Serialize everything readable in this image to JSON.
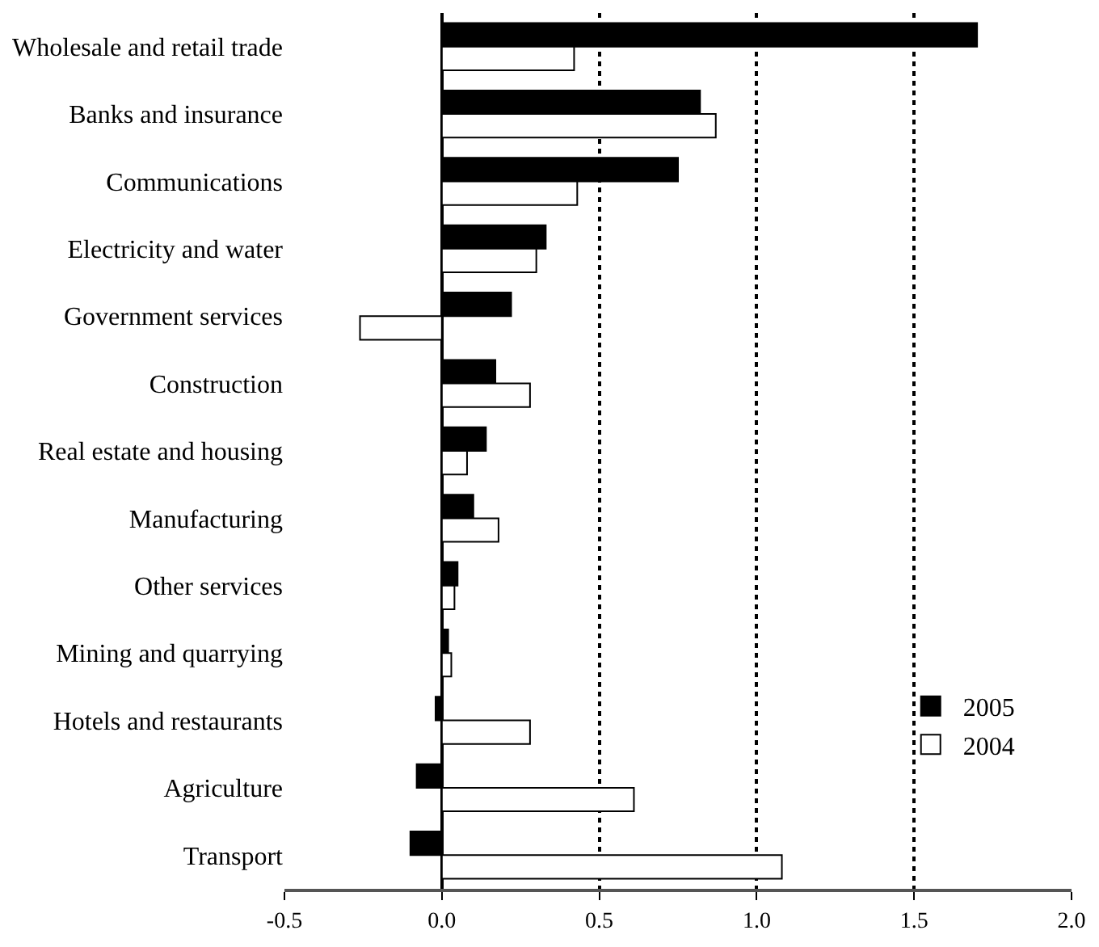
{
  "chart_data": {
    "type": "bar",
    "orientation": "horizontal",
    "categories": [
      "Wholesale and retail trade",
      "Banks and insurance",
      "Communications",
      "Electricity and water",
      "Government services",
      "Construction",
      "Real estate and housing",
      "Manufacturing",
      "Other services",
      "Mining and quarrying",
      "Hotels and restaurants",
      "Agriculture",
      "Transport"
    ],
    "series": [
      {
        "name": "2005",
        "color": "#000000",
        "values": [
          1.7,
          0.82,
          0.75,
          0.33,
          0.22,
          0.17,
          0.14,
          0.1,
          0.05,
          0.02,
          -0.02,
          -0.08,
          -0.1
        ]
      },
      {
        "name": "2004",
        "color": "#ffffff",
        "values": [
          0.42,
          0.87,
          0.43,
          0.3,
          -0.26,
          0.28,
          0.08,
          0.18,
          0.04,
          0.03,
          0.28,
          0.61,
          1.08
        ]
      }
    ],
    "xlim": [
      -0.5,
      2.0
    ],
    "xticks": [
      {
        "value": -0.5,
        "label": "-0.5"
      },
      {
        "value": 0.0,
        "label": "0.0"
      },
      {
        "value": 0.5,
        "label": "0.5"
      },
      {
        "value": 1.0,
        "label": "1.0"
      },
      {
        "value": 1.5,
        "label": "1.5"
      },
      {
        "value": 2.0,
        "label": "2.0"
      }
    ],
    "grid": "x",
    "legend": "bottom right"
  }
}
